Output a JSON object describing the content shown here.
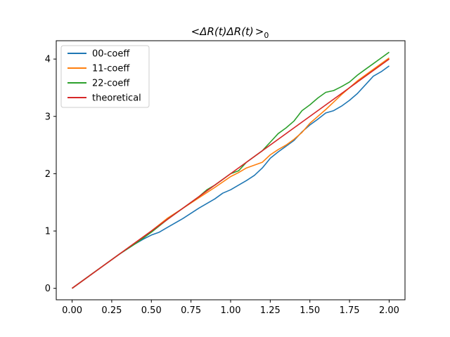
{
  "chart_data": {
    "type": "line",
    "title": "$<\\Delta R(t)\\Delta R(t)>_0$",
    "title_display": {
      "lt": "<",
      "delta1": "Δ",
      "r1": "R",
      "paren_t1": "(t)",
      "delta2": "Δ",
      "r2": "R",
      "paren_t2": "(t)",
      "gt": ">",
      "sub": "0"
    },
    "xlabel": "",
    "ylabel": "",
    "xlim": [
      -0.1,
      2.1
    ],
    "ylim": [
      -0.2,
      4.32
    ],
    "xticks": [
      0.0,
      0.25,
      0.5,
      0.75,
      1.0,
      1.25,
      1.5,
      1.75,
      2.0
    ],
    "xtick_labels": [
      "0.00",
      "0.25",
      "0.50",
      "0.75",
      "1.00",
      "1.25",
      "1.50",
      "1.75",
      "2.00"
    ],
    "yticks": [
      0,
      1,
      2,
      3,
      4
    ],
    "ytick_labels": [
      "0",
      "1",
      "2",
      "3",
      "4"
    ],
    "grid": false,
    "legend_position": "top-left",
    "series": [
      {
        "name": "00-coeff",
        "color": "#1f77b4",
        "x": [
          0.0,
          0.1,
          0.2,
          0.3,
          0.4,
          0.45,
          0.5,
          0.55,
          0.6,
          0.7,
          0.8,
          0.9,
          0.95,
          1.0,
          1.05,
          1.1,
          1.15,
          1.2,
          1.25,
          1.3,
          1.35,
          1.4,
          1.45,
          1.5,
          1.55,
          1.6,
          1.65,
          1.7,
          1.75,
          1.8,
          1.85,
          1.9,
          1.95,
          2.0
        ],
        "y": [
          0.0,
          0.2,
          0.4,
          0.6,
          0.78,
          0.86,
          0.93,
          0.98,
          1.06,
          1.22,
          1.4,
          1.56,
          1.66,
          1.72,
          1.8,
          1.88,
          1.97,
          2.1,
          2.27,
          2.38,
          2.48,
          2.58,
          2.73,
          2.85,
          2.95,
          3.06,
          3.1,
          3.18,
          3.28,
          3.4,
          3.55,
          3.7,
          3.78,
          3.88
        ]
      },
      {
        "name": "11-coeff",
        "color": "#ff7f0e",
        "x": [
          0.0,
          0.1,
          0.2,
          0.3,
          0.4,
          0.5,
          0.6,
          0.7,
          0.8,
          0.9,
          1.0,
          1.05,
          1.1,
          1.2,
          1.25,
          1.3,
          1.35,
          1.4,
          1.45,
          1.5,
          1.55,
          1.6,
          1.65,
          1.7,
          1.75,
          1.8,
          1.85,
          1.9,
          1.95,
          2.0
        ],
        "y": [
          0.0,
          0.2,
          0.4,
          0.6,
          0.8,
          1.0,
          1.22,
          1.4,
          1.58,
          1.76,
          1.95,
          2.02,
          2.1,
          2.2,
          2.33,
          2.42,
          2.5,
          2.6,
          2.72,
          2.88,
          3.0,
          3.12,
          3.25,
          3.38,
          3.5,
          3.62,
          3.72,
          3.82,
          3.92,
          4.02
        ]
      },
      {
        "name": "22-coeff",
        "color": "#2ca02c",
        "x": [
          0.0,
          0.1,
          0.2,
          0.3,
          0.4,
          0.45,
          0.5,
          0.6,
          0.7,
          0.8,
          0.85,
          0.9,
          1.0,
          1.05,
          1.1,
          1.2,
          1.25,
          1.3,
          1.35,
          1.4,
          1.45,
          1.5,
          1.55,
          1.6,
          1.65,
          1.7,
          1.75,
          1.8,
          1.85,
          1.9,
          1.95,
          2.0
        ],
        "y": [
          0.0,
          0.2,
          0.4,
          0.6,
          0.78,
          0.88,
          0.98,
          1.2,
          1.4,
          1.6,
          1.72,
          1.8,
          2.0,
          2.05,
          2.2,
          2.4,
          2.55,
          2.7,
          2.8,
          2.92,
          3.1,
          3.2,
          3.32,
          3.42,
          3.45,
          3.52,
          3.6,
          3.72,
          3.82,
          3.92,
          4.02,
          4.12
        ]
      },
      {
        "name": "theoretical",
        "color": "#d62728",
        "x": [
          0.0,
          2.0
        ],
        "y": [
          0.0,
          4.0
        ]
      }
    ]
  }
}
